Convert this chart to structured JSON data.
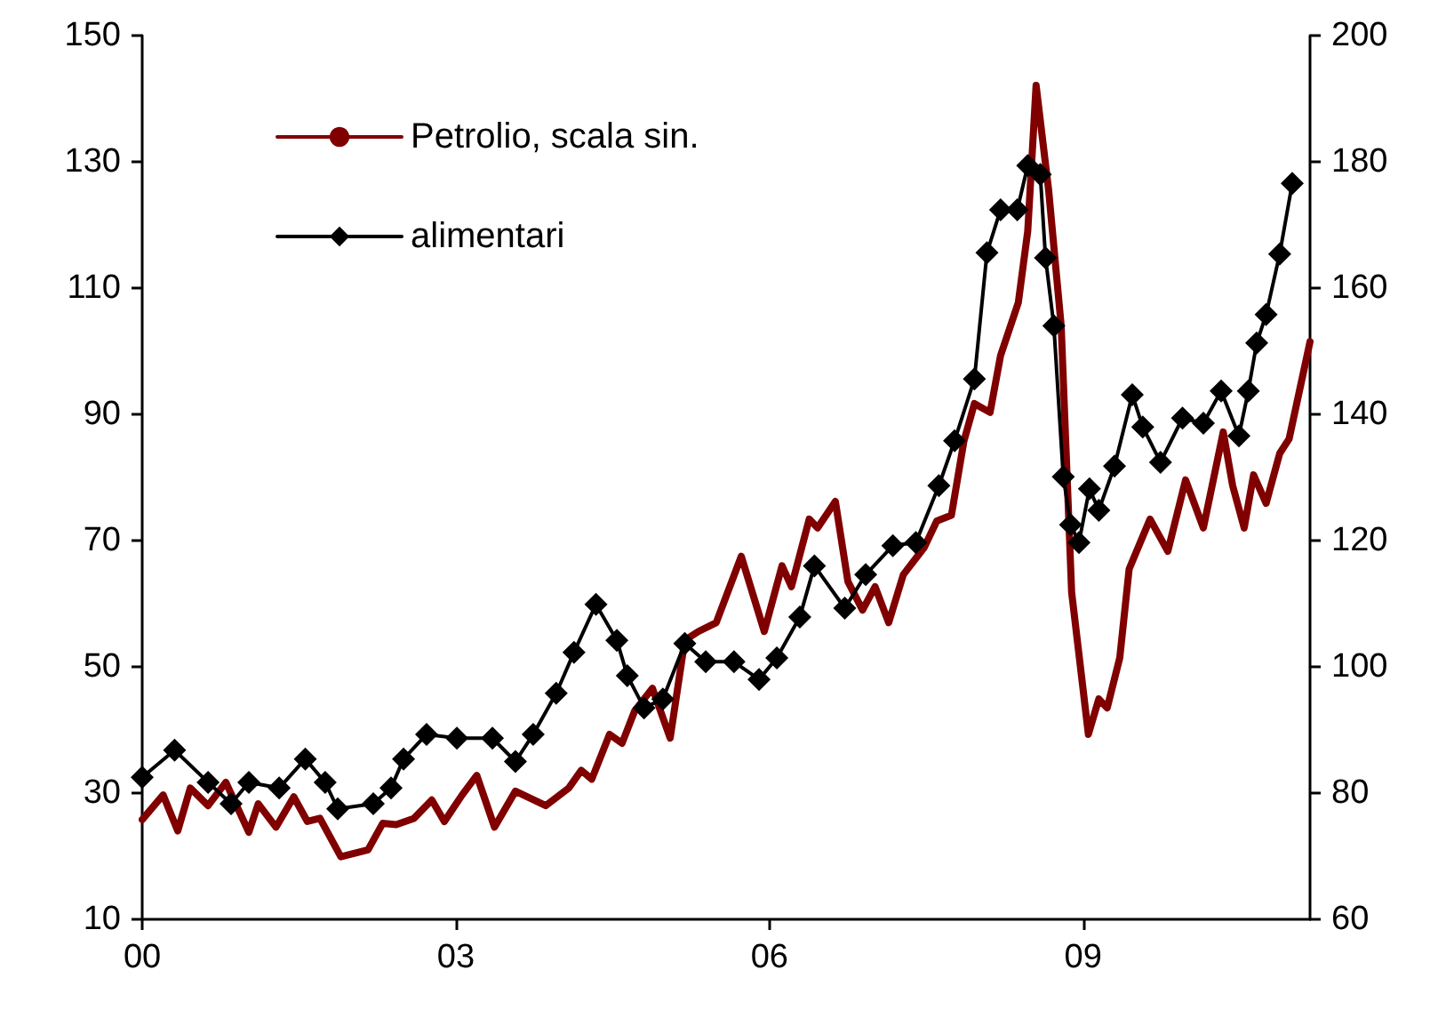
{
  "chart_data": {
    "type": "line",
    "legend": "top left",
    "grid": false,
    "xlim": [
      2000,
      2011.17
    ],
    "xticks": [
      {
        "value": 2000,
        "label": "00"
      },
      {
        "value": 2003,
        "label": "03"
      },
      {
        "value": 2006,
        "label": "06"
      },
      {
        "value": 2009,
        "label": "09"
      }
    ],
    "ylim": [
      10,
      150
    ],
    "yticks": [
      10,
      30,
      50,
      70,
      90,
      110,
      130,
      150
    ],
    "y2lim": [
      60,
      200
    ],
    "y2ticks": [
      60,
      80,
      100,
      120,
      140,
      160,
      180,
      200
    ],
    "series": [
      {
        "name": "Petrolio, scala sin.",
        "color": "#800000",
        "marker": "none",
        "axis": "y",
        "x": [
          2000.0,
          2000.2,
          2000.34,
          2000.46,
          2000.63,
          2000.8,
          2001.02,
          2001.11,
          2001.28,
          2001.45,
          2001.58,
          2001.7,
          2001.9,
          2002.16,
          2002.3,
          2002.43,
          2002.6,
          2002.77,
          2002.89,
          2003.06,
          2003.2,
          2003.37,
          2003.57,
          2003.86,
          2004.08,
          2004.2,
          2004.3,
          2004.47,
          2004.59,
          2004.71,
          2004.88,
          2005.05,
          2005.19,
          2005.32,
          2005.49,
          2005.73,
          2005.95,
          2006.12,
          2006.21,
          2006.38,
          2006.46,
          2006.63,
          2006.75,
          2006.89,
          2007.01,
          2007.14,
          2007.28,
          2007.48,
          2007.6,
          2007.74,
          2007.86,
          2007.96,
          2008.11,
          2008.21,
          2008.38,
          2008.47,
          2008.55,
          2008.67,
          2008.79,
          2008.89,
          2009.05,
          2009.15,
          2009.23,
          2009.35,
          2009.44,
          2009.64,
          2009.81,
          2009.98,
          2010.15,
          2010.34,
          2010.43,
          2010.54,
          2010.63,
          2010.75,
          2010.88,
          2010.97,
          2011.17
        ],
        "values": [
          25.8,
          29.7,
          24,
          30.8,
          28,
          31.7,
          23.8,
          28.3,
          24.6,
          29.4,
          25.5,
          26,
          19.9,
          21,
          25.2,
          25,
          26,
          28.9,
          25.5,
          29.7,
          32.8,
          24.6,
          30.3,
          28,
          30.8,
          33.6,
          32.2,
          39.3,
          37.9,
          43,
          46.6,
          38.7,
          54.2,
          55.6,
          57,
          67.5,
          55.6,
          66,
          62.7,
          73.4,
          72,
          76.2,
          63.5,
          59,
          62.7,
          57,
          64.6,
          68.9,
          73.1,
          74,
          85.8,
          91.7,
          90.3,
          99.3,
          107.7,
          119,
          142.1,
          125.5,
          104,
          61.8,
          39.3,
          44.9,
          43.5,
          51.4,
          65.5,
          73.4,
          68.3,
          79.6,
          72,
          87.2,
          78.7,
          72,
          80.4,
          75.9,
          83.8,
          86.1,
          101.5
        ]
      },
      {
        "name": "alimentari",
        "color": "#000000",
        "marker": "diamond",
        "axis": "y2",
        "x": [
          2000.0,
          2000.31,
          2000.63,
          2000.85,
          2001.02,
          2001.31,
          2001.56,
          2001.75,
          2001.87,
          2002.21,
          2002.38,
          2002.5,
          2002.72,
          2003.01,
          2003.35,
          2003.57,
          2003.74,
          2003.96,
          2004.13,
          2004.34,
          2004.54,
          2004.64,
          2004.8,
          2004.98,
          2005.19,
          2005.39,
          2005.66,
          2005.9,
          2006.07,
          2006.29,
          2006.43,
          2006.72,
          2006.92,
          2007.18,
          2007.4,
          2007.62,
          2007.77,
          2007.96,
          2008.08,
          2008.21,
          2008.37,
          2008.47,
          2008.59,
          2008.64,
          2008.72,
          2008.81,
          2008.88,
          2008.96,
          2009.06,
          2009.15,
          2009.3,
          2009.47,
          2009.57,
          2009.74,
          2009.95,
          2010.15,
          2010.32,
          2010.49,
          2010.58,
          2010.66,
          2010.75,
          2010.88,
          2011.0
        ],
        "values": [
          82.5,
          86.8,
          81.7,
          78.3,
          81.7,
          80.8,
          85.4,
          81.7,
          77.5,
          78.3,
          80.8,
          85.4,
          89.3,
          88.7,
          88.7,
          85,
          89.3,
          95.8,
          102.3,
          109.9,
          104.2,
          98.6,
          93.5,
          94.9,
          103.7,
          100.8,
          100.8,
          98,
          101.4,
          107.9,
          116,
          109.3,
          114.6,
          119.2,
          119.7,
          128.7,
          135.8,
          145.6,
          165.6,
          172.4,
          172.4,
          179.4,
          178,
          164.8,
          154,
          130.1,
          122.5,
          119.7,
          128.2,
          124.8,
          131.8,
          143.1,
          138,
          132.4,
          139.4,
          138.6,
          143.7,
          136.6,
          143.7,
          151.3,
          155.8,
          165.4,
          176.6
        ]
      }
    ]
  }
}
